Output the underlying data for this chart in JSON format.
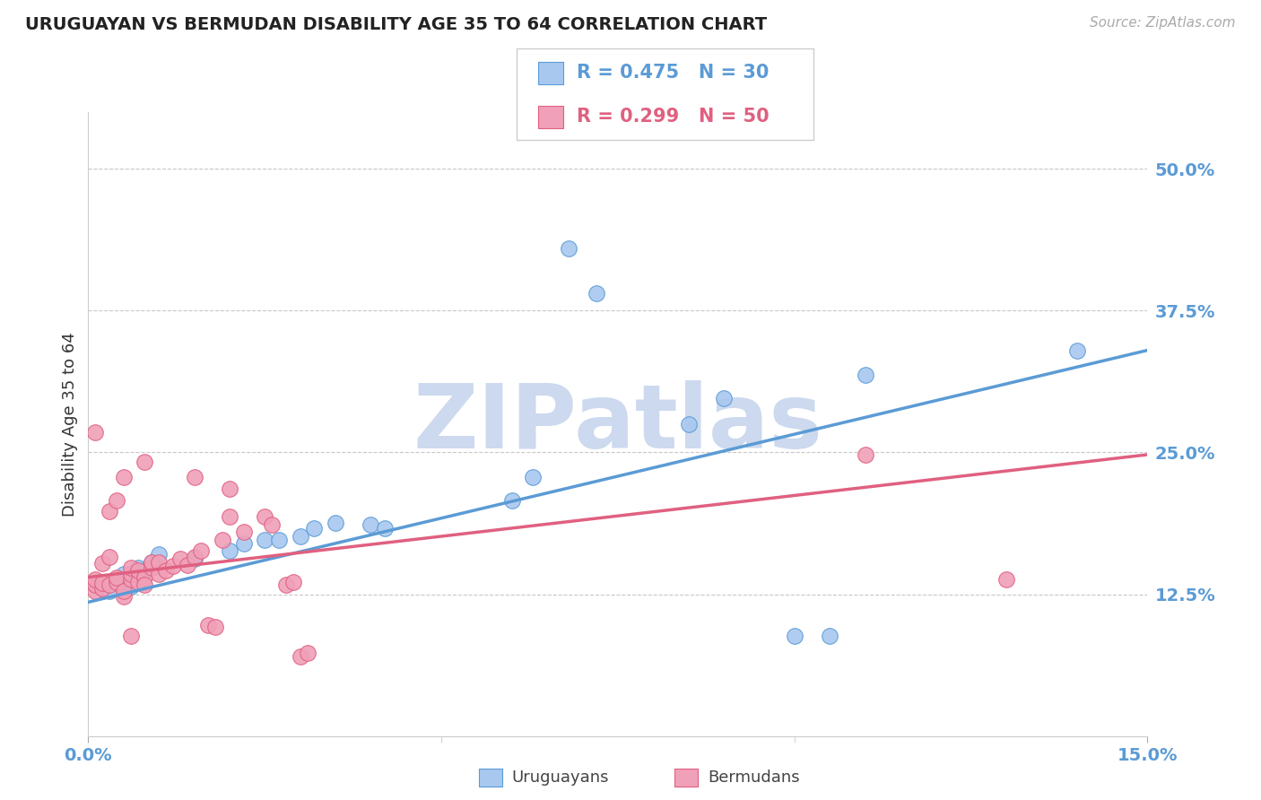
{
  "title": "URUGUAYAN VS BERMUDAN DISABILITY AGE 35 TO 64 CORRELATION CHART",
  "source": "Source: ZipAtlas.com",
  "ylabel": "Disability Age 35 to 64",
  "yticks": [
    "12.5%",
    "25.0%",
    "37.5%",
    "50.0%"
  ],
  "ytick_values": [
    0.125,
    0.25,
    0.375,
    0.5
  ],
  "xlim": [
    0.0,
    0.15
  ],
  "ylim": [
    0.0,
    0.55
  ],
  "legend_r_blue": "R = 0.475",
  "legend_n_blue": "N = 30",
  "legend_r_pink": "R = 0.299",
  "legend_n_pink": "N = 50",
  "uruguayan_points": [
    [
      0.001,
      0.134
    ],
    [
      0.002,
      0.13
    ],
    [
      0.003,
      0.128
    ],
    [
      0.004,
      0.138
    ],
    [
      0.005,
      0.143
    ],
    [
      0.006,
      0.132
    ],
    [
      0.007,
      0.148
    ],
    [
      0.008,
      0.146
    ],
    [
      0.009,
      0.153
    ],
    [
      0.01,
      0.16
    ],
    [
      0.015,
      0.156
    ],
    [
      0.02,
      0.163
    ],
    [
      0.022,
      0.17
    ],
    [
      0.025,
      0.173
    ],
    [
      0.027,
      0.173
    ],
    [
      0.03,
      0.176
    ],
    [
      0.032,
      0.183
    ],
    [
      0.035,
      0.188
    ],
    [
      0.04,
      0.186
    ],
    [
      0.042,
      0.183
    ],
    [
      0.06,
      0.208
    ],
    [
      0.063,
      0.228
    ],
    [
      0.068,
      0.43
    ],
    [
      0.072,
      0.39
    ],
    [
      0.085,
      0.275
    ],
    [
      0.09,
      0.298
    ],
    [
      0.1,
      0.088
    ],
    [
      0.105,
      0.088
    ],
    [
      0.11,
      0.318
    ],
    [
      0.14,
      0.34
    ]
  ],
  "bermudan_points": [
    [
      0.001,
      0.128
    ],
    [
      0.001,
      0.133
    ],
    [
      0.001,
      0.138
    ],
    [
      0.001,
      0.268
    ],
    [
      0.002,
      0.13
    ],
    [
      0.002,
      0.135
    ],
    [
      0.002,
      0.152
    ],
    [
      0.003,
      0.133
    ],
    [
      0.003,
      0.158
    ],
    [
      0.003,
      0.198
    ],
    [
      0.004,
      0.136
    ],
    [
      0.004,
      0.14
    ],
    [
      0.004,
      0.208
    ],
    [
      0.005,
      0.123
    ],
    [
      0.005,
      0.128
    ],
    [
      0.005,
      0.228
    ],
    [
      0.006,
      0.088
    ],
    [
      0.006,
      0.138
    ],
    [
      0.006,
      0.143
    ],
    [
      0.006,
      0.148
    ],
    [
      0.007,
      0.136
    ],
    [
      0.007,
      0.146
    ],
    [
      0.008,
      0.14
    ],
    [
      0.008,
      0.133
    ],
    [
      0.008,
      0.242
    ],
    [
      0.009,
      0.148
    ],
    [
      0.009,
      0.153
    ],
    [
      0.01,
      0.143
    ],
    [
      0.01,
      0.153
    ],
    [
      0.011,
      0.146
    ],
    [
      0.012,
      0.15
    ],
    [
      0.013,
      0.156
    ],
    [
      0.014,
      0.151
    ],
    [
      0.015,
      0.158
    ],
    [
      0.015,
      0.228
    ],
    [
      0.016,
      0.163
    ],
    [
      0.017,
      0.098
    ],
    [
      0.018,
      0.096
    ],
    [
      0.019,
      0.173
    ],
    [
      0.02,
      0.193
    ],
    [
      0.02,
      0.218
    ],
    [
      0.022,
      0.18
    ],
    [
      0.025,
      0.193
    ],
    [
      0.026,
      0.186
    ],
    [
      0.028,
      0.133
    ],
    [
      0.029,
      0.136
    ],
    [
      0.03,
      0.07
    ],
    [
      0.031,
      0.073
    ],
    [
      0.11,
      0.248
    ],
    [
      0.13,
      0.138
    ]
  ],
  "blue_line": {
    "x0": 0.0,
    "y0": 0.118,
    "x1": 0.15,
    "y1": 0.34
  },
  "pink_line": {
    "x0": 0.0,
    "y0": 0.14,
    "x1": 0.15,
    "y1": 0.248
  },
  "blue_color": "#5b9bd5",
  "pink_color": "#e06080",
  "dot_blue": "#a8c8f0",
  "dot_pink": "#f0a0b8",
  "grid_color": "#c8c8c8",
  "background_color": "#ffffff",
  "title_color": "#222222",
  "axis_label_color": "#5b9bd5",
  "watermark_color": "#ccd9ee"
}
